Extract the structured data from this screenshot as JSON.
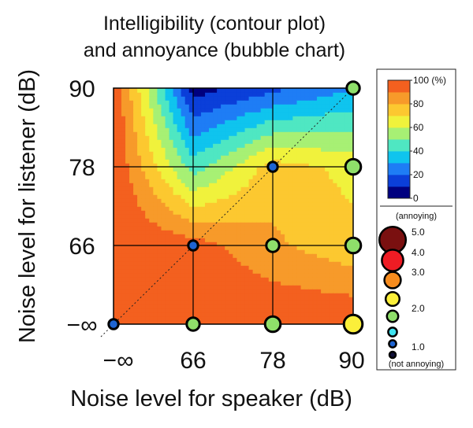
{
  "chart_data": {
    "type": "heatmap",
    "title": "Intelligibility (contour plot)",
    "subtitle": "and annoyance (bubble chart)",
    "xlabel": "Noise level for speaker (dB)",
    "ylabel": "Noise level for listener (dB)",
    "x_ticks": [
      "−∞",
      "66",
      "78",
      "90"
    ],
    "y_ticks": [
      "90",
      "78",
      "66",
      "−∞"
    ],
    "grid": true,
    "diagonal_reference_line": true,
    "contour": {
      "name": "Intelligibility",
      "levels": [
        0,
        10,
        20,
        30,
        40,
        50,
        60,
        70,
        80,
        90,
        100
      ],
      "level_colors": [
        "#00007f",
        "#0b3fd9",
        "#1e7df5",
        "#0fc4ee",
        "#4fe7c2",
        "#a7f074",
        "#f0f23c",
        "#fcc830",
        "#f79a2a",
        "#f3601f"
      ],
      "grid_values": {
        "x": [
          "−∞",
          "66",
          "78",
          "90"
        ],
        "y": [
          "−∞",
          "66",
          "78",
          "90"
        ],
        "rows": [
          {
            "y": "−∞",
            "values": [
              100,
              100,
              100,
              100
            ]
          },
          {
            "y": "66",
            "values": [
              100,
              95,
              82,
              73
            ]
          },
          {
            "y": "78",
            "values": [
              100,
              45,
              75,
              67
            ]
          },
          {
            "y": "90",
            "values": [
              100,
              5,
              17,
              30
            ]
          }
        ]
      }
    },
    "bubbles": {
      "name": "Annoyance",
      "scale_min": 1.0,
      "scale_max": 5.0,
      "points": [
        {
          "x": "−∞",
          "y": "−∞",
          "value": 1.3
        },
        {
          "x": "66",
          "y": "−∞",
          "value": 1.8
        },
        {
          "x": "78",
          "y": "−∞",
          "value": 2.2
        },
        {
          "x": "90",
          "y": "−∞",
          "value": 2.7
        },
        {
          "x": "66",
          "y": "66",
          "value": 1.3
        },
        {
          "x": "78",
          "y": "66",
          "value": 1.8
        },
        {
          "x": "90",
          "y": "66",
          "value": 2.2
        },
        {
          "x": "78",
          "y": "78",
          "value": 1.3
        },
        {
          "x": "90",
          "y": "78",
          "value": 2.2
        },
        {
          "x": "90",
          "y": "90",
          "value": 1.8
        }
      ]
    },
    "colorbar": {
      "tick_labels": [
        "100 (%)",
        "80",
        "60",
        "40",
        "20",
        "0"
      ],
      "tick_values": [
        100,
        80,
        60,
        40,
        20,
        0
      ]
    },
    "bubble_legend": {
      "top_label": "(annoying)",
      "bottom_label": "(not annoying)",
      "entries": [
        {
          "label": "5.0",
          "value": 5.0,
          "color": "#7a1010"
        },
        {
          "label": "4.0",
          "value": 4.0,
          "color": "#ee1c24"
        },
        {
          "label": "3.0",
          "value": 3.0,
          "color": "#f78c1e"
        },
        {
          "label": "",
          "value": 2.5,
          "color": "#fbef3a"
        },
        {
          "label": "2.0",
          "value": 2.0,
          "color": "#8fdf6a"
        },
        {
          "label": "",
          "value": 1.5,
          "color": "#3fe3f0"
        },
        {
          "label": "",
          "value": 1.2,
          "color": "#1e64d2"
        },
        {
          "label": "1.0",
          "value": 1.0,
          "color": "#10103a"
        }
      ]
    }
  }
}
